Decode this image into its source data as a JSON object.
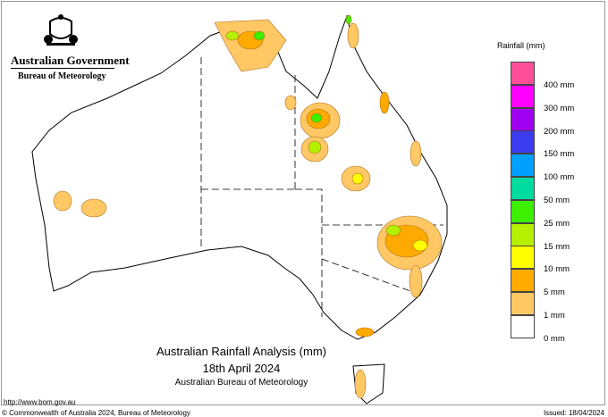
{
  "logo": {
    "line1": "Australian Government",
    "line2": "Bureau of Meteorology"
  },
  "title": {
    "main": "Australian Rainfall Analysis (mm)",
    "date": "18th April 2024",
    "org": "Australian Bureau of Meteorology"
  },
  "footer": {
    "url": "http://www.bom.gov.au",
    "copyright": "© Commonwealth of Australia 2024, Bureau of Meteorology",
    "issued": "Issued: 18/04/2024"
  },
  "legend": {
    "title": "Rainfall (mm)",
    "colors": [
      "#ff4f9a",
      "#ff00ff",
      "#a000f0",
      "#3c3cf0",
      "#00a0ff",
      "#00dca0",
      "#3cf000",
      "#b4f000",
      "#ffff00",
      "#ffaa00",
      "#ffc864",
      "#ffffff"
    ],
    "labels": [
      "400 mm",
      "300 mm",
      "200 mm",
      "150 mm",
      "100 mm",
      "50 mm",
      "25 mm",
      "15 mm",
      "10 mm",
      "5 mm",
      "1 mm",
      "0 mm"
    ]
  }
}
